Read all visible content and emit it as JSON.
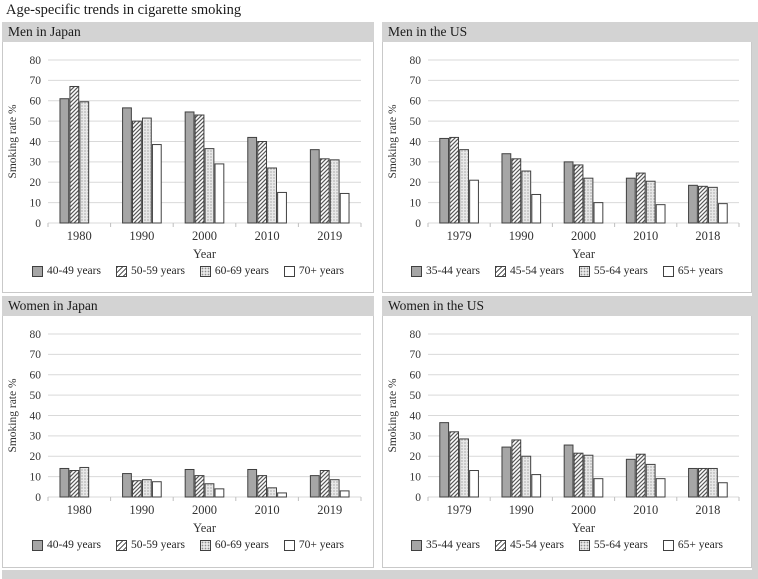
{
  "title": "Age-specific trends in cigarette smoking",
  "colors": {
    "header_bg": "#d3d3d3",
    "bar_solid": "#a6a6a6",
    "bar_outline": "#404040",
    "hatch_line": "#595959",
    "stipple_bg": "#e8e8e8",
    "stipple_dot": "#8f8f8f",
    "grid": "#d9d9d9",
    "axis_tick": "#bfbfbf",
    "text": "#333333"
  },
  "chart_data": [
    {
      "type": "bar",
      "title": "Men in Japan",
      "xlabel": "Year",
      "ylabel": "Smoking rate %",
      "ylim": [
        0,
        80
      ],
      "yticks": [
        0,
        10,
        20,
        30,
        40,
        50,
        60,
        70,
        80
      ],
      "grid": true,
      "legend_position": "bottom",
      "categories": [
        "1980",
        "1990",
        "2000",
        "2010",
        "2019"
      ],
      "series": [
        {
          "name": "40-49 years",
          "style": "solid",
          "values": [
            61,
            56.5,
            54.5,
            42,
            36
          ]
        },
        {
          "name": "50-59 years",
          "style": "hatch",
          "values": [
            67,
            50,
            53,
            40,
            31.5
          ]
        },
        {
          "name": "60-69 years",
          "style": "stipple",
          "values": [
            59.5,
            51.5,
            36.5,
            27,
            31
          ]
        },
        {
          "name": "70+ years",
          "style": "open",
          "values": [
            null,
            38.5,
            29,
            15,
            14.5
          ]
        }
      ]
    },
    {
      "type": "bar",
      "title": "Men in the US",
      "xlabel": "Year",
      "ylabel": "Smoking rate %",
      "ylim": [
        0,
        80
      ],
      "yticks": [
        0,
        10,
        20,
        30,
        40,
        50,
        60,
        70,
        80
      ],
      "grid": true,
      "legend_position": "bottom",
      "categories": [
        "1979",
        "1990",
        "2000",
        "2010",
        "2018"
      ],
      "series": [
        {
          "name": "35-44 years",
          "style": "solid",
          "values": [
            41.5,
            34,
            30,
            22,
            18.5
          ]
        },
        {
          "name": "45-54 years",
          "style": "hatch",
          "values": [
            42,
            31.5,
            28.5,
            24.5,
            18
          ]
        },
        {
          "name": "55-64 years",
          "style": "stipple",
          "values": [
            36,
            25.5,
            22,
            20.5,
            17.5
          ]
        },
        {
          "name": "65+ years",
          "style": "open",
          "values": [
            21,
            14,
            10,
            9,
            9.5
          ]
        }
      ]
    },
    {
      "type": "bar",
      "title": "Women in Japan",
      "xlabel": "Year",
      "ylabel": "Smoking rate %",
      "ylim": [
        0,
        80
      ],
      "yticks": [
        0,
        10,
        20,
        30,
        40,
        50,
        60,
        70,
        80
      ],
      "grid": true,
      "legend_position": "bottom",
      "categories": [
        "1980",
        "1990",
        "2000",
        "2010",
        "2019"
      ],
      "series": [
        {
          "name": "40-49 years",
          "style": "solid",
          "values": [
            14,
            11.5,
            13.5,
            13.5,
            10.5
          ]
        },
        {
          "name": "50-59 years",
          "style": "hatch",
          "values": [
            13,
            8,
            10.5,
            10.5,
            13
          ]
        },
        {
          "name": "60-69 years",
          "style": "stipple",
          "values": [
            14.5,
            8.5,
            6.5,
            4.5,
            8.5
          ]
        },
        {
          "name": "70+ years",
          "style": "open",
          "values": [
            null,
            7.5,
            4,
            2,
            3
          ]
        }
      ]
    },
    {
      "type": "bar",
      "title": "Women in the US",
      "xlabel": "Year",
      "ylabel": "Smoking rate %",
      "ylim": [
        0,
        80
      ],
      "yticks": [
        0,
        10,
        20,
        30,
        40,
        50,
        60,
        70,
        80
      ],
      "grid": true,
      "legend_position": "bottom",
      "categories": [
        "1979",
        "1990",
        "2000",
        "2010",
        "2018"
      ],
      "series": [
        {
          "name": "35-44 years",
          "style": "solid",
          "values": [
            36.5,
            24.5,
            25.5,
            18.5,
            14
          ]
        },
        {
          "name": "45-54 years",
          "style": "hatch",
          "values": [
            32,
            28,
            21.5,
            21,
            14
          ]
        },
        {
          "name": "55-64 years",
          "style": "stipple",
          "values": [
            28.5,
            20,
            20.5,
            16,
            14
          ]
        },
        {
          "name": "65+ years",
          "style": "open",
          "values": [
            13,
            11,
            9,
            9,
            7
          ]
        }
      ]
    }
  ]
}
